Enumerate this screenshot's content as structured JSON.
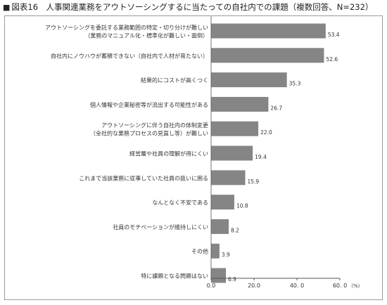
{
  "figure": {
    "marker": "■",
    "title": "図表16　人事関連業務をアウトソーシングするに当たっての自社内での課題（複数回答、N=232）"
  },
  "chart_data": {
    "type": "bar",
    "orientation": "horizontal",
    "categories": [
      [
        "アウトソーシングを委託する業務範囲の特定・切り分けが難しい",
        "（業務のマニュアル化・標準化が難しい・面倒）"
      ],
      [
        "自社内にノウハウが蓄積できない（自社内で人材が育たない）"
      ],
      [
        "結果的にコストが高くつく"
      ],
      [
        "個人情報や企業秘密等が流出する可能性がある"
      ],
      [
        "アウトソーシングに伴う自社内の体制変更",
        "（全社的な業務プロセスの見直し等）が難しい"
      ],
      [
        "経営層や社員の理解が得にくい"
      ],
      [
        "これまで当該業務に従事していた社員の扱いに困る"
      ],
      [
        "なんとなく不安である"
      ],
      [
        "社員のモチベーションが維持しにくい"
      ],
      [
        "その他"
      ],
      [
        "特に課題となる問題はない"
      ]
    ],
    "values": [
      53.4,
      52.6,
      35.3,
      26.7,
      22.0,
      19.4,
      15.9,
      10.8,
      8.2,
      3.9,
      6.9
    ],
    "value_labels": [
      "53.4",
      "52.6",
      "35.3",
      "26.7",
      "22.0",
      "19.4",
      "15.9",
      "10.8",
      "8.2",
      "3.9",
      "6.9"
    ],
    "xlim": [
      0,
      60
    ],
    "xticks": [
      0,
      20,
      40,
      60
    ],
    "xtick_labels": [
      "0.0",
      "20.0",
      "40. 0",
      "60. 0"
    ],
    "unit": "（%）",
    "bar_color": "#858585",
    "grid": false
  }
}
